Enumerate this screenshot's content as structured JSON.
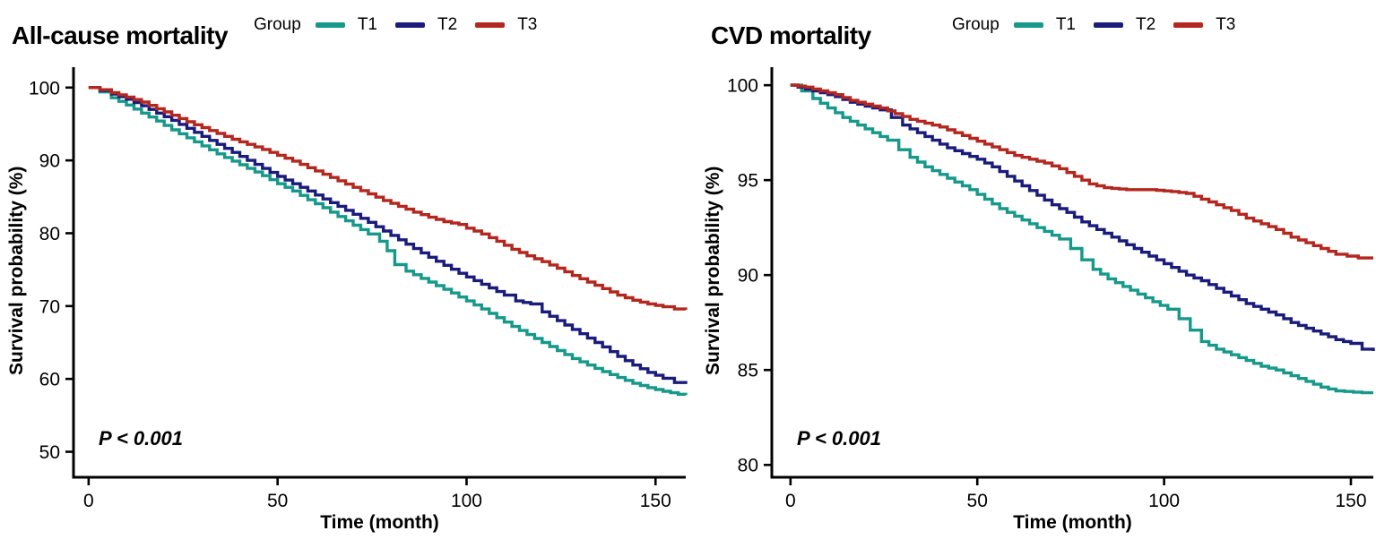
{
  "figure": {
    "background": "#ffffff"
  },
  "chart_data": [
    {
      "type": "line",
      "subtype": "kaplan-meier-step",
      "title": "All-cause mortality",
      "xlabel": "Time (month)",
      "ylabel": "Survival probability (%)",
      "legend_title": "Group",
      "legend_position": "top",
      "p_value": "P < 0.001",
      "grid": false,
      "xlim": [
        -4,
        158
      ],
      "ylim": [
        46.5,
        102.8
      ],
      "xticks": [
        0,
        50,
        100,
        150
      ],
      "yticks": [
        50,
        60,
        70,
        80,
        90,
        100
      ],
      "series": [
        {
          "name": "T1",
          "color": "#16998A",
          "points": [
            [
              0,
              100
            ],
            [
              3,
              99.4
            ],
            [
              6,
              98.6
            ],
            [
              10,
              97.6
            ],
            [
              14,
              96.5
            ],
            [
              18,
              95.4
            ],
            [
              22,
              94.2
            ],
            [
              26,
              93.1
            ],
            [
              30,
              92.0
            ],
            [
              34,
              90.9
            ],
            [
              38,
              89.9
            ],
            [
              42,
              88.9
            ],
            [
              46,
              87.9
            ],
            [
              50,
              86.8
            ],
            [
              54,
              85.8
            ],
            [
              58,
              84.6
            ],
            [
              62,
              83.5
            ],
            [
              66,
              82.3
            ],
            [
              70,
              81.1
            ],
            [
              74,
              79.9
            ],
            [
              77,
              78.9
            ],
            [
              79,
              77.6
            ],
            [
              81,
              75.7
            ],
            [
              84,
              74.8
            ],
            [
              88,
              73.8
            ],
            [
              92,
              72.8
            ],
            [
              96,
              71.8
            ],
            [
              100,
              70.7
            ],
            [
              104,
              69.6
            ],
            [
              108,
              68.4
            ],
            [
              112,
              67.2
            ],
            [
              116,
              66.1
            ],
            [
              120,
              65.0
            ],
            [
              124,
              63.9
            ],
            [
              128,
              62.8
            ],
            [
              132,
              61.9
            ],
            [
              136,
              61.0
            ],
            [
              140,
              60.2
            ],
            [
              144,
              59.4
            ],
            [
              148,
              58.8
            ],
            [
              152,
              58.3
            ],
            [
              156,
              57.9
            ],
            [
              158,
              57.8
            ]
          ]
        },
        {
          "name": "T2",
          "color": "#1A1C7C",
          "points": [
            [
              0,
              100
            ],
            [
              3,
              99.6
            ],
            [
              6,
              99.1
            ],
            [
              10,
              98.4
            ],
            [
              14,
              97.5
            ],
            [
              18,
              96.5
            ],
            [
              22,
              95.5
            ],
            [
              26,
              94.4
            ],
            [
              30,
              93.3
            ],
            [
              34,
              92.2
            ],
            [
              38,
              91.1
            ],
            [
              42,
              90.0
            ],
            [
              46,
              88.9
            ],
            [
              50,
              87.8
            ],
            [
              54,
              86.8
            ],
            [
              58,
              85.8
            ],
            [
              62,
              84.7
            ],
            [
              66,
              83.7
            ],
            [
              70,
              82.6
            ],
            [
              74,
              81.5
            ],
            [
              78,
              80.3
            ],
            [
              82,
              79.1
            ],
            [
              86,
              77.9
            ],
            [
              90,
              76.7
            ],
            [
              94,
              75.6
            ],
            [
              98,
              74.5
            ],
            [
              102,
              73.5
            ],
            [
              106,
              72.5
            ],
            [
              110,
              71.5
            ],
            [
              113,
              70.7
            ],
            [
              117,
              70.3
            ],
            [
              120,
              69.2
            ],
            [
              124,
              68.0
            ],
            [
              128,
              66.8
            ],
            [
              132,
              65.6
            ],
            [
              136,
              64.4
            ],
            [
              140,
              63.1
            ],
            [
              144,
              61.9
            ],
            [
              148,
              60.9
            ],
            [
              152,
              60.1
            ],
            [
              155,
              59.5
            ],
            [
              158,
              59.3
            ]
          ]
        },
        {
          "name": "T3",
          "color": "#B4271F",
          "points": [
            [
              0,
              100
            ],
            [
              3,
              99.7
            ],
            [
              6,
              99.3
            ],
            [
              10,
              98.7
            ],
            [
              14,
              98.0
            ],
            [
              18,
              97.1
            ],
            [
              22,
              96.2
            ],
            [
              26,
              95.3
            ],
            [
              30,
              94.5
            ],
            [
              34,
              93.7
            ],
            [
              38,
              92.9
            ],
            [
              42,
              92.2
            ],
            [
              46,
              91.5
            ],
            [
              50,
              90.7
            ],
            [
              54,
              89.9
            ],
            [
              58,
              89.0
            ],
            [
              62,
              88.1
            ],
            [
              66,
              87.2
            ],
            [
              70,
              86.3
            ],
            [
              74,
              85.4
            ],
            [
              78,
              84.5
            ],
            [
              82,
              83.7
            ],
            [
              86,
              82.9
            ],
            [
              90,
              82.2
            ],
            [
              94,
              81.6
            ],
            [
              98,
              81.2
            ],
            [
              100,
              80.7
            ],
            [
              104,
              79.9
            ],
            [
              108,
              78.9
            ],
            [
              112,
              77.8
            ],
            [
              116,
              76.9
            ],
            [
              120,
              76.1
            ],
            [
              124,
              75.2
            ],
            [
              128,
              74.2
            ],
            [
              132,
              73.3
            ],
            [
              136,
              72.4
            ],
            [
              140,
              71.5
            ],
            [
              144,
              70.8
            ],
            [
              148,
              70.3
            ],
            [
              152,
              69.9
            ],
            [
              155,
              69.6
            ],
            [
              158,
              69.5
            ]
          ]
        }
      ]
    },
    {
      "type": "line",
      "subtype": "kaplan-meier-step",
      "title": "CVD mortality",
      "xlabel": "Time (month)",
      "ylabel": "Survival probability (%)",
      "legend_title": "Group",
      "legend_position": "top",
      "p_value": "P < 0.001",
      "grid": false,
      "xlim": [
        -5,
        156
      ],
      "ylim": [
        79.35,
        100.95
      ],
      "xticks": [
        0,
        50,
        100,
        150
      ],
      "yticks": [
        80,
        85,
        90,
        95,
        100
      ],
      "series": [
        {
          "name": "T1",
          "color": "#16998A",
          "points": [
            [
              0,
              100
            ],
            [
              3,
              99.7
            ],
            [
              6,
              99.3
            ],
            [
              10,
              98.8
            ],
            [
              14,
              98.3
            ],
            [
              18,
              97.9
            ],
            [
              22,
              97.5
            ],
            [
              26,
              97.1
            ],
            [
              29,
              96.6
            ],
            [
              32,
              96.2
            ],
            [
              36,
              95.7
            ],
            [
              40,
              95.3
            ],
            [
              44,
              94.9
            ],
            [
              48,
              94.5
            ],
            [
              52,
              94.0
            ],
            [
              56,
              93.5
            ],
            [
              60,
              93.1
            ],
            [
              64,
              92.7
            ],
            [
              68,
              92.3
            ],
            [
              72,
              91.9
            ],
            [
              75,
              91.4
            ],
            [
              78,
              90.8
            ],
            [
              81,
              90.3
            ],
            [
              85,
              89.8
            ],
            [
              89,
              89.4
            ],
            [
              93,
              89.0
            ],
            [
              97,
              88.6
            ],
            [
              101,
              88.2
            ],
            [
              104,
              87.7
            ],
            [
              107,
              87.1
            ],
            [
              110,
              86.5
            ],
            [
              114,
              86.1
            ],
            [
              118,
              85.8
            ],
            [
              122,
              85.5
            ],
            [
              126,
              85.2
            ],
            [
              130,
              85.0
            ],
            [
              134,
              84.7
            ],
            [
              138,
              84.4
            ],
            [
              142,
              84.1
            ],
            [
              146,
              83.9
            ],
            [
              153,
              83.8
            ],
            [
              156,
              83.8
            ]
          ]
        },
        {
          "name": "T2",
          "color": "#1A1C7C",
          "points": [
            [
              0,
              100
            ],
            [
              4,
              99.8
            ],
            [
              8,
              99.6
            ],
            [
              12,
              99.4
            ],
            [
              16,
              99.1
            ],
            [
              20,
              98.9
            ],
            [
              24,
              98.7
            ],
            [
              27,
              98.3
            ],
            [
              30,
              97.9
            ],
            [
              34,
              97.5
            ],
            [
              38,
              97.1
            ],
            [
              42,
              96.7
            ],
            [
              46,
              96.4
            ],
            [
              50,
              96.1
            ],
            [
              54,
              95.7
            ],
            [
              58,
              95.2
            ],
            [
              62,
              94.7
            ],
            [
              66,
              94.2
            ],
            [
              70,
              93.7
            ],
            [
              74,
              93.3
            ],
            [
              78,
              92.8
            ],
            [
              82,
              92.4
            ],
            [
              86,
              92.0
            ],
            [
              90,
              91.6
            ],
            [
              94,
              91.2
            ],
            [
              98,
              90.8
            ],
            [
              102,
              90.4
            ],
            [
              106,
              90.0
            ],
            [
              110,
              89.7
            ],
            [
              114,
              89.3
            ],
            [
              118,
              88.9
            ],
            [
              122,
              88.5
            ],
            [
              126,
              88.2
            ],
            [
              130,
              87.9
            ],
            [
              134,
              87.5
            ],
            [
              138,
              87.2
            ],
            [
              142,
              86.9
            ],
            [
              146,
              86.6
            ],
            [
              150,
              86.4
            ],
            [
              153,
              86.1
            ],
            [
              156,
              86.0
            ]
          ]
        },
        {
          "name": "T3",
          "color": "#B4271F",
          "points": [
            [
              0,
              100
            ],
            [
              4,
              99.9
            ],
            [
              8,
              99.7
            ],
            [
              12,
              99.5
            ],
            [
              16,
              99.2
            ],
            [
              20,
              99.0
            ],
            [
              24,
              98.8
            ],
            [
              28,
              98.5
            ],
            [
              32,
              98.2
            ],
            [
              36,
              98.0
            ],
            [
              40,
              97.8
            ],
            [
              44,
              97.5
            ],
            [
              48,
              97.2
            ],
            [
              52,
              96.9
            ],
            [
              56,
              96.6
            ],
            [
              60,
              96.3
            ],
            [
              64,
              96.1
            ],
            [
              68,
              95.9
            ],
            [
              72,
              95.6
            ],
            [
              76,
              95.2
            ],
            [
              80,
              94.8
            ],
            [
              84,
              94.6
            ],
            [
              90,
              94.5
            ],
            [
              96,
              94.5
            ],
            [
              102,
              94.4
            ],
            [
              106,
              94.3
            ],
            [
              110,
              94.0
            ],
            [
              114,
              93.7
            ],
            [
              118,
              93.4
            ],
            [
              122,
              93.0
            ],
            [
              126,
              92.7
            ],
            [
              130,
              92.4
            ],
            [
              134,
              92.0
            ],
            [
              138,
              91.7
            ],
            [
              142,
              91.4
            ],
            [
              146,
              91.1
            ],
            [
              149,
              91.0
            ],
            [
              152,
              90.9
            ],
            [
              156,
              90.9
            ]
          ]
        }
      ]
    }
  ]
}
